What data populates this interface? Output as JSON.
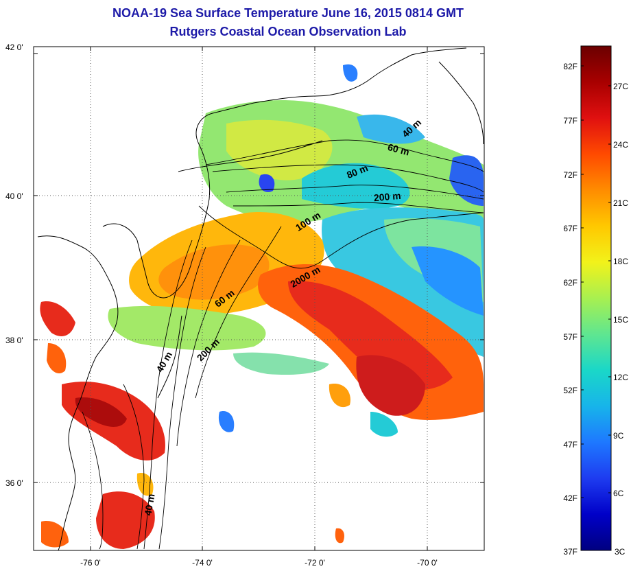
{
  "title_line1": "NOAA-19 Sea Surface Temperature June 16, 2015 0814 GMT",
  "title_line2": "Rutgers Coastal Ocean Observation Lab",
  "lat_labels": [
    "42 0'",
    "40 0'",
    "38 0'",
    "36 0'"
  ],
  "lon_labels": [
    "-76 0'",
    "-74 0'",
    "-72 0'",
    "-70 0'"
  ],
  "contour_labels": [
    "40 m",
    "60 m",
    "80 m",
    "200 m",
    "100 m",
    "2000 m",
    "60 m",
    "200 m",
    "40 m",
    "40 m"
  ],
  "colorbar": {
    "fahrenheit_labels": [
      "82F",
      "77F",
      "72F",
      "67F",
      "62F",
      "57F",
      "52F",
      "47F",
      "42F",
      "37F"
    ],
    "celsius_labels": [
      "27C",
      "24C",
      "21C",
      "18C",
      "15C",
      "12C",
      "9C",
      "6C",
      "3C"
    ],
    "colors": [
      "#6b0000",
      "#a80000",
      "#e01010",
      "#ff4a00",
      "#ff8c00",
      "#ffc800",
      "#f2f21a",
      "#a8f050",
      "#5fe690",
      "#1ad7c8",
      "#17b4ea",
      "#1e78ff",
      "#1e3cf0",
      "#0000c8",
      "#000080"
    ]
  }
}
